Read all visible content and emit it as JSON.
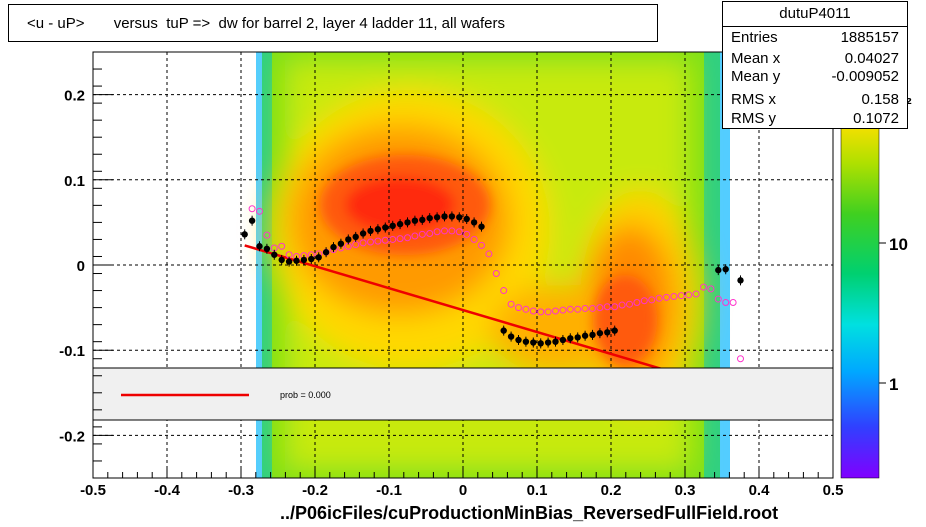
{
  "title": "<u - uP>       versus  tuP =>  dw for barrel 2, layer 4 ladder 11, all wafers",
  "stats": {
    "name": "dutuP4011",
    "rows": [
      {
        "key": "Entries",
        "value": "1885157"
      },
      {
        "key": "Mean x",
        "value": "0.04027"
      },
      {
        "key": "Mean y",
        "value": "-0.009052"
      },
      {
        "key": "RMS x",
        "value": "0.158"
      },
      {
        "key": "RMS y",
        "value": "0.1072"
      }
    ]
  },
  "legend": {
    "fit_label": "prob = 0.000"
  },
  "footer": "../P06icFiles/cuProductionMinBias_ReversedFullField.root",
  "colors": {
    "fit_line": "#ee0000",
    "profile_black": "#000000",
    "profile_magenta": "#ff33cc"
  },
  "chart_data": {
    "type": "heatmap",
    "xlim": [
      -0.5,
      0.5
    ],
    "ylim": [
      -0.25,
      0.25
    ],
    "x_ticks": [
      "-0.5",
      "-0.4",
      "-0.3",
      "-0.2",
      "-0.1",
      "0",
      "0.1",
      "0.2",
      "0.3",
      "0.4",
      "0.5"
    ],
    "y_ticks": [
      "0.2",
      "0.1",
      "0",
      "-0.1",
      "-0.2"
    ],
    "z_scale": "log",
    "z_ticks": [
      "10",
      "1"
    ],
    "z_partial_label": "²",
    "grid": true,
    "fit_line": {
      "x": [
        -0.295,
        0.28
      ],
      "y": [
        0.023,
        -0.125
      ]
    },
    "profile_black": {
      "x": [
        -0.295,
        -0.285,
        -0.275,
        -0.265,
        -0.255,
        -0.245,
        -0.235,
        -0.225,
        -0.215,
        -0.205,
        -0.195,
        -0.185,
        -0.175,
        -0.165,
        -0.155,
        -0.145,
        -0.135,
        -0.125,
        -0.115,
        -0.105,
        -0.095,
        -0.085,
        -0.075,
        -0.065,
        -0.055,
        -0.045,
        -0.035,
        -0.025,
        -0.015,
        -0.005,
        0.005,
        0.015,
        0.025,
        0.055,
        0.065,
        0.075,
        0.085,
        0.095,
        0.105,
        0.115,
        0.125,
        0.135,
        0.145,
        0.155,
        0.165,
        0.175,
        0.185,
        0.195,
        0.205,
        0.345,
        0.355,
        0.375
      ],
      "y": [
        0.036,
        0.052,
        0.022,
        0.019,
        0.012,
        0.006,
        0.004,
        0.005,
        0.006,
        0.007,
        0.009,
        0.015,
        0.021,
        0.025,
        0.03,
        0.033,
        0.037,
        0.04,
        0.042,
        0.044,
        0.046,
        0.048,
        0.05,
        0.052,
        0.053,
        0.055,
        0.056,
        0.057,
        0.057,
        0.056,
        0.054,
        0.05,
        0.045,
        -0.077,
        -0.084,
        -0.088,
        -0.09,
        -0.091,
        -0.092,
        -0.091,
        -0.09,
        -0.088,
        -0.086,
        -0.085,
        -0.083,
        -0.082,
        -0.08,
        -0.079,
        -0.077,
        -0.006,
        -0.005,
        -0.018
      ]
    },
    "profile_magenta": {
      "x": [
        -0.285,
        -0.275,
        -0.265,
        -0.255,
        -0.245,
        -0.235,
        -0.225,
        -0.215,
        -0.205,
        -0.195,
        -0.185,
        -0.175,
        -0.165,
        -0.155,
        -0.145,
        -0.135,
        -0.125,
        -0.115,
        -0.105,
        -0.095,
        -0.085,
        -0.075,
        -0.065,
        -0.055,
        -0.045,
        -0.035,
        -0.025,
        -0.015,
        -0.005,
        0.005,
        0.015,
        0.025,
        0.035,
        0.045,
        0.055,
        0.065,
        0.075,
        0.085,
        0.095,
        0.105,
        0.115,
        0.125,
        0.135,
        0.145,
        0.155,
        0.165,
        0.175,
        0.185,
        0.195,
        0.205,
        0.215,
        0.225,
        0.235,
        0.245,
        0.255,
        0.265,
        0.275,
        0.285,
        0.295,
        0.305,
        0.315,
        0.325,
        0.335,
        0.345,
        0.355,
        0.365,
        0.375
      ],
      "y": [
        0.066,
        0.063,
        0.035,
        0.02,
        0.022,
        0.012,
        0.01,
        0.011,
        0.012,
        0.013,
        0.015,
        0.018,
        0.02,
        0.022,
        0.024,
        0.026,
        0.027,
        0.028,
        0.029,
        0.03,
        0.031,
        0.032,
        0.034,
        0.036,
        0.037,
        0.039,
        0.04,
        0.04,
        0.039,
        0.036,
        0.03,
        0.023,
        0.013,
        -0.01,
        -0.03,
        -0.046,
        -0.05,
        -0.052,
        -0.054,
        -0.055,
        -0.055,
        -0.054,
        -0.053,
        -0.052,
        -0.052,
        -0.051,
        -0.051,
        -0.05,
        -0.049,
        -0.049,
        -0.047,
        -0.046,
        -0.044,
        -0.042,
        -0.041,
        -0.039,
        -0.038,
        -0.037,
        -0.036,
        -0.035,
        -0.034,
        -0.026,
        -0.028,
        -0.04,
        -0.044,
        -0.044,
        -0.11
      ]
    }
  }
}
